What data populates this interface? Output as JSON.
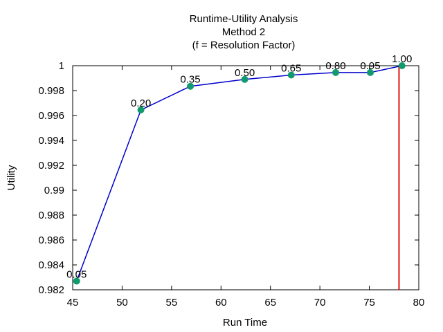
{
  "chart_data": {
    "type": "line",
    "title": [
      "Runtime-Utility Analysis",
      "Method 2",
      "(f = Resolution Factor)"
    ],
    "xlabel": "Run Time",
    "ylabel": "Utility",
    "xlim": [
      45,
      80
    ],
    "ylim": [
      0.982,
      1.0
    ],
    "xticks": [
      45,
      50,
      55,
      60,
      65,
      70,
      75,
      80
    ],
    "yticks": [
      0.982,
      0.984,
      0.986,
      0.988,
      0.99,
      0.992,
      0.994,
      0.996,
      0.998,
      1
    ],
    "ytick_labels": [
      "0.982",
      "0.984",
      "0.986",
      "0.988",
      "0.99",
      "0.992",
      "0.994",
      "0.996",
      "0.998",
      "1"
    ],
    "grid": false,
    "series": [
      {
        "x": [
          45.4,
          51.9,
          56.9,
          62.4,
          67.1,
          71.6,
          75.1,
          78.3
        ],
        "y": [
          0.9827,
          0.99645,
          0.99835,
          0.9989,
          0.99925,
          0.99945,
          0.99945,
          1.0
        ],
        "point_labels": [
          "0.05",
          "0.20",
          "0.35",
          "0.50",
          "0.65",
          "0.80",
          "0.95",
          "1.00"
        ],
        "line_color": "#0000cc",
        "marker_color": "#109a6e"
      }
    ],
    "vline": {
      "x": 78.0,
      "color": "#dd1111"
    }
  }
}
